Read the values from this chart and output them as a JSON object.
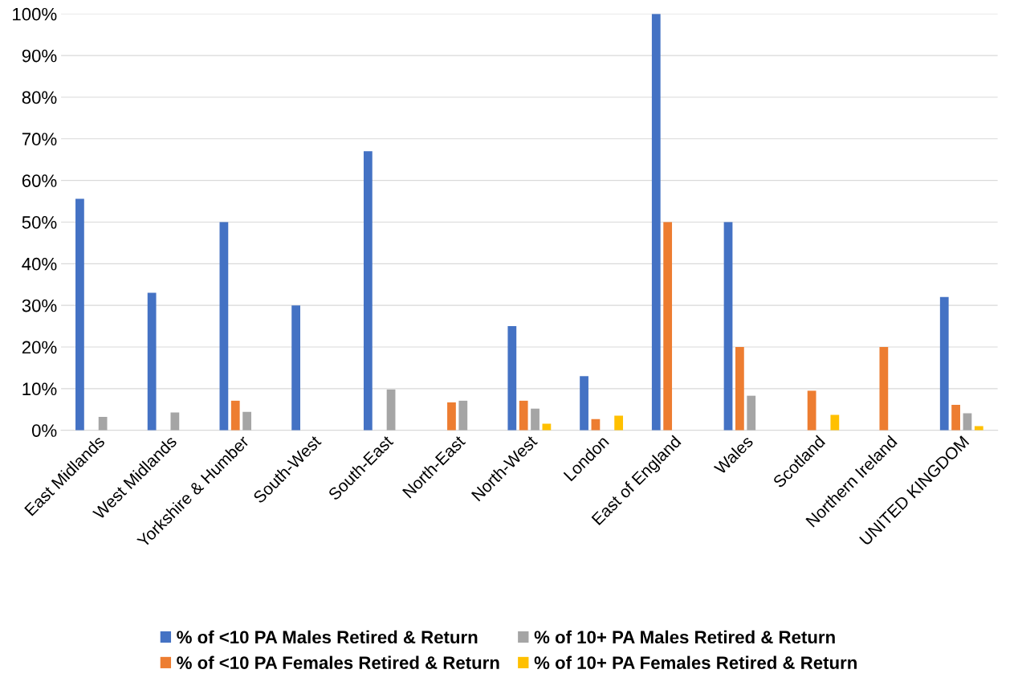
{
  "chart_data": {
    "type": "bar",
    "categories": [
      "East Midlands",
      "West Midlands",
      "Yorkshire & Humber",
      "South-West",
      "South-East",
      "North-East",
      "North-West",
      "London",
      "East of England",
      "Wales",
      "Scotland",
      "Northern Ireland",
      "UNITED KINGDOM"
    ],
    "series": [
      {
        "name": "% of <10 PA Males Retired & Return",
        "color": "#4472c4",
        "values": [
          55.6,
          33,
          50,
          30,
          67,
          null,
          25,
          13,
          100,
          50,
          null,
          null,
          32
        ]
      },
      {
        "name": "% of <10 PA Females Retired & Return",
        "color": "#ed7d31",
        "values": [
          null,
          null,
          7.1,
          null,
          null,
          6.7,
          7.1,
          2.7,
          50,
          20,
          9.5,
          20,
          6.1
        ]
      },
      {
        "name": "% of 10+ PA Males Retired & Return",
        "color": "#a5a5a5",
        "values": [
          3.2,
          4.3,
          4.4,
          null,
          9.8,
          7.1,
          5.2,
          null,
          null,
          8.3,
          null,
          null,
          4.1
        ]
      },
      {
        "name": "% of 10+ PA Females Retired & Return",
        "color": "#ffc000",
        "values": [
          null,
          null,
          null,
          null,
          null,
          null,
          1.6,
          3.5,
          null,
          null,
          3.7,
          null,
          1.0
        ]
      }
    ],
    "ylim": [
      0,
      100
    ],
    "yticks": [
      {
        "value": 0,
        "label": "0%"
      },
      {
        "value": 10,
        "label": "10%"
      },
      {
        "value": 20,
        "label": "20%"
      },
      {
        "value": 30,
        "label": "30%"
      },
      {
        "value": 40,
        "label": "40%"
      },
      {
        "value": 50,
        "label": "50%"
      },
      {
        "value": 60,
        "label": "60%"
      },
      {
        "value": 70,
        "label": "70%"
      },
      {
        "value": 80,
        "label": "80%"
      },
      {
        "value": 90,
        "label": "90%"
      },
      {
        "value": 100,
        "label": "100%"
      }
    ],
    "grid": "y",
    "legend": "bottom"
  }
}
